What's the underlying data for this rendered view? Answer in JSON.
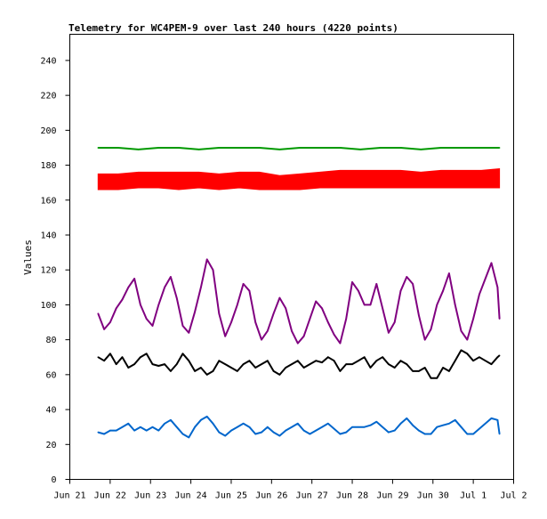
{
  "chart_data": {
    "type": "line",
    "title": "Telemetry for WC4PEM-9 over last 240 hours (4220 points)",
    "xlabel": "",
    "ylabel": "Values",
    "ylim": [
      0,
      255
    ],
    "xlim": [
      0,
      11
    ],
    "yticks": [
      0,
      20,
      40,
      60,
      80,
      100,
      120,
      140,
      160,
      180,
      200,
      220,
      240
    ],
    "xtick_labels": [
      "Jun 21",
      "Jun 22",
      "Jun 23",
      "Jun 24",
      "Jun 25",
      "Jun 26",
      "Jun 27",
      "Jun 28",
      "Jun 29",
      "Jun 30",
      "Jul 1",
      "Jul 2"
    ],
    "grid": false,
    "legend": "none",
    "series": [
      {
        "color": "#009900",
        "x": [
          0.7,
          1.2,
          1.7,
          2.2,
          2.7,
          3.2,
          3.7,
          4.2,
          4.7,
          5.2,
          5.7,
          6.2,
          6.7,
          7.2,
          7.7,
          8.2,
          8.7,
          9.2,
          9.7,
          10.2,
          10.65
        ],
        "y": [
          190,
          190,
          189,
          190,
          190,
          189,
          190,
          190,
          190,
          189,
          190,
          190,
          190,
          189,
          190,
          190,
          189,
          190,
          190,
          190,
          190
        ]
      },
      {
        "color": "#ff0000",
        "band": true,
        "x": [
          0.7,
          1.2,
          1.7,
          2.2,
          2.7,
          3.2,
          3.7,
          4.2,
          4.7,
          5.2,
          5.7,
          6.2,
          6.7,
          7.2,
          7.7,
          8.2,
          8.7,
          9.2,
          9.7,
          10.2,
          10.65
        ],
        "low": [
          166,
          166,
          167,
          167,
          166,
          167,
          166,
          167,
          166,
          166,
          166,
          167,
          167,
          167,
          167,
          167,
          167,
          167,
          167,
          167,
          167
        ],
        "high": [
          175,
          175,
          176,
          176,
          176,
          176,
          175,
          176,
          176,
          174,
          175,
          176,
          177,
          177,
          177,
          177,
          176,
          177,
          177,
          177,
          178
        ]
      },
      {
        "color": "#800080",
        "x": [
          0.7,
          0.85,
          1.0,
          1.15,
          1.3,
          1.45,
          1.6,
          1.75,
          1.9,
          2.05,
          2.2,
          2.35,
          2.5,
          2.65,
          2.8,
          2.95,
          3.1,
          3.25,
          3.4,
          3.55,
          3.7,
          3.85,
          4.0,
          4.15,
          4.3,
          4.45,
          4.6,
          4.75,
          4.9,
          5.05,
          5.2,
          5.35,
          5.5,
          5.65,
          5.8,
          5.95,
          6.1,
          6.25,
          6.4,
          6.55,
          6.7,
          6.85,
          7.0,
          7.15,
          7.3,
          7.45,
          7.6,
          7.75,
          7.9,
          8.05,
          8.2,
          8.35,
          8.5,
          8.65,
          8.8,
          8.95,
          9.1,
          9.25,
          9.4,
          9.55,
          9.7,
          9.85,
          10.0,
          10.15,
          10.3,
          10.45,
          10.6,
          10.65
        ],
        "y": [
          95,
          86,
          90,
          98,
          103,
          110,
          115,
          100,
          92,
          88,
          100,
          110,
          116,
          104,
          88,
          84,
          96,
          110,
          126,
          120,
          95,
          82,
          90,
          100,
          112,
          108,
          90,
          80,
          85,
          95,
          104,
          98,
          85,
          78,
          82,
          92,
          102,
          98,
          90,
          83,
          78,
          92,
          113,
          108,
          100,
          100,
          112,
          98,
          84,
          90,
          108,
          116,
          112,
          94,
          80,
          86,
          100,
          108,
          118,
          100,
          85,
          80,
          92,
          106,
          115,
          124,
          110,
          92
        ]
      },
      {
        "color": "#000000",
        "x": [
          0.7,
          0.85,
          1.0,
          1.15,
          1.3,
          1.45,
          1.6,
          1.75,
          1.9,
          2.05,
          2.2,
          2.35,
          2.5,
          2.65,
          2.8,
          2.95,
          3.1,
          3.25,
          3.4,
          3.55,
          3.7,
          3.85,
          4.0,
          4.15,
          4.3,
          4.45,
          4.6,
          4.75,
          4.9,
          5.05,
          5.2,
          5.35,
          5.5,
          5.65,
          5.8,
          5.95,
          6.1,
          6.25,
          6.4,
          6.55,
          6.7,
          6.85,
          7.0,
          7.15,
          7.3,
          7.45,
          7.6,
          7.75,
          7.9,
          8.05,
          8.2,
          8.35,
          8.5,
          8.65,
          8.8,
          8.95,
          9.1,
          9.25,
          9.4,
          9.55,
          9.7,
          9.85,
          10.0,
          10.15,
          10.3,
          10.45,
          10.6,
          10.65
        ],
        "y": [
          70,
          68,
          72,
          66,
          70,
          64,
          66,
          70,
          72,
          66,
          65,
          66,
          62,
          66,
          72,
          68,
          62,
          64,
          60,
          62,
          68,
          66,
          64,
          62,
          66,
          68,
          64,
          66,
          68,
          62,
          60,
          64,
          66,
          68,
          64,
          66,
          68,
          67,
          70,
          68,
          62,
          66,
          66,
          68,
          70,
          64,
          68,
          70,
          66,
          64,
          68,
          66,
          62,
          62,
          64,
          58,
          58,
          64,
          62,
          68,
          74,
          72,
          68,
          70,
          68,
          66,
          70,
          71
        ]
      },
      {
        "color": "#0066cc",
        "x": [
          0.7,
          0.85,
          1.0,
          1.15,
          1.3,
          1.45,
          1.6,
          1.75,
          1.9,
          2.05,
          2.2,
          2.35,
          2.5,
          2.65,
          2.8,
          2.95,
          3.1,
          3.25,
          3.4,
          3.55,
          3.7,
          3.85,
          4.0,
          4.15,
          4.3,
          4.45,
          4.6,
          4.75,
          4.9,
          5.05,
          5.2,
          5.35,
          5.5,
          5.65,
          5.8,
          5.95,
          6.1,
          6.25,
          6.4,
          6.55,
          6.7,
          6.85,
          7.0,
          7.15,
          7.3,
          7.45,
          7.6,
          7.75,
          7.9,
          8.05,
          8.2,
          8.35,
          8.5,
          8.65,
          8.8,
          8.95,
          9.1,
          9.25,
          9.4,
          9.55,
          9.7,
          9.85,
          10.0,
          10.15,
          10.3,
          10.45,
          10.6,
          10.65
        ],
        "y": [
          27,
          26,
          28,
          28,
          30,
          32,
          28,
          30,
          28,
          30,
          28,
          32,
          34,
          30,
          26,
          24,
          30,
          34,
          36,
          32,
          27,
          25,
          28,
          30,
          32,
          30,
          26,
          27,
          30,
          27,
          25,
          28,
          30,
          32,
          28,
          26,
          28,
          30,
          32,
          29,
          26,
          27,
          30,
          30,
          30,
          31,
          33,
          30,
          27,
          28,
          32,
          35,
          31,
          28,
          26,
          26,
          30,
          31,
          32,
          34,
          30,
          26,
          26,
          29,
          32,
          35,
          34,
          26
        ]
      }
    ]
  }
}
